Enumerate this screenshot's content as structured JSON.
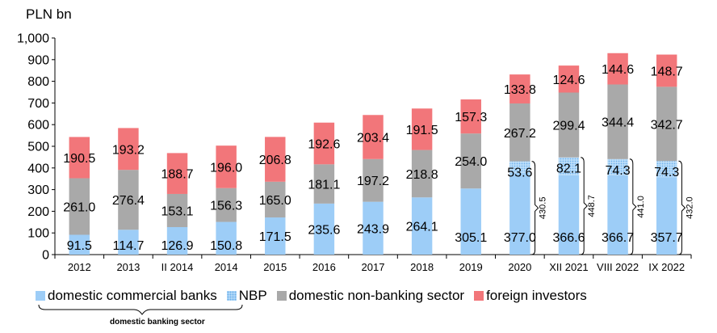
{
  "chart_data": {
    "type": "bar",
    "stacked": true,
    "unit_label": "PLN bn",
    "categories": [
      "2012",
      "2013",
      "II 2014",
      "2014",
      "2015",
      "2016",
      "2017",
      "2018",
      "2019",
      "2020",
      "XII 2021",
      "VIII 2022",
      "IX 2022"
    ],
    "ylim": [
      0,
      1000
    ],
    "ytick_step": 100,
    "yticks": [
      "0",
      "100",
      "200",
      "300",
      "400",
      "500",
      "600",
      "700",
      "800",
      "900",
      "1,000"
    ],
    "series": [
      {
        "name": "domestic commercial banks",
        "color": "#9dcdf7",
        "values": [
          91.5,
          114.7,
          126.9,
          150.8,
          171.5,
          235.6,
          243.9,
          264.1,
          305.1,
          377.0,
          366.6,
          366.7,
          357.7
        ]
      },
      {
        "name": "NBP",
        "color": "#9dcdf7",
        "pattern": "dotted",
        "values": [
          null,
          null,
          null,
          null,
          null,
          null,
          null,
          null,
          null,
          53.6,
          82.1,
          74.3,
          74.3
        ]
      },
      {
        "name": "domestic non-banking sector",
        "color": "#a9a9a9",
        "values": [
          261.0,
          276.4,
          153.1,
          156.3,
          165.0,
          181.1,
          197.2,
          218.8,
          254.0,
          267.2,
          299.4,
          344.4,
          342.7
        ]
      },
      {
        "name": "foreign investors",
        "color": "#f2767a",
        "values": [
          190.5,
          193.2,
          188.7,
          196.0,
          206.8,
          192.6,
          203.4,
          191.5,
          157.3,
          133.8,
          124.6,
          144.6,
          148.7
        ]
      }
    ],
    "label_text": {
      "domestic commercial banks": [
        "91.5",
        "114.7",
        "126.9",
        "150.8",
        "171.5",
        "235.6",
        "243.9",
        "264.1",
        "305.1",
        "377.0",
        "366.6",
        "366.7",
        "357.7"
      ],
      "NBP": [
        "",
        "",
        "",
        "",
        "",
        "",
        "",
        "",
        "",
        "53.6",
        "82.1",
        "74.3",
        "74.3"
      ],
      "domestic non-banking sector": [
        "261.0",
        "276.4",
        "153.1",
        "156.3",
        "165.0",
        "181.1",
        "197.2",
        "218.8",
        "254.0",
        "267.2",
        "299.4",
        "344.4",
        "342.7"
      ],
      "foreign investors": [
        "190.5",
        "193.2",
        "188.7",
        "196.0",
        "206.8",
        "192.6",
        "203.4",
        "191.5",
        "157.3",
        "133.8",
        "124.6",
        "144.6",
        "148.7"
      ]
    },
    "bracket_annotations": [
      {
        "category": "2020",
        "value": 430.5,
        "text": "430.5"
      },
      {
        "category": "XII 2021",
        "value": 448.7,
        "text": "448.7"
      },
      {
        "category": "VIII 2022",
        "value": 441.0,
        "text": "441.0"
      },
      {
        "category": "IX 2022",
        "value": 432.0,
        "text": "432.0"
      }
    ],
    "grid": false,
    "legend_position": "bottom"
  },
  "legend": {
    "items": [
      {
        "label": "domestic commercial banks",
        "icon": "solid-blue-swatch"
      },
      {
        "label": "NBP",
        "icon": "dotted-blue-swatch"
      },
      {
        "label": "domestic non-banking sector",
        "icon": "gray-swatch"
      },
      {
        "label": "foreign investors",
        "icon": "red-swatch"
      }
    ]
  },
  "group_label": "domestic banking sector"
}
